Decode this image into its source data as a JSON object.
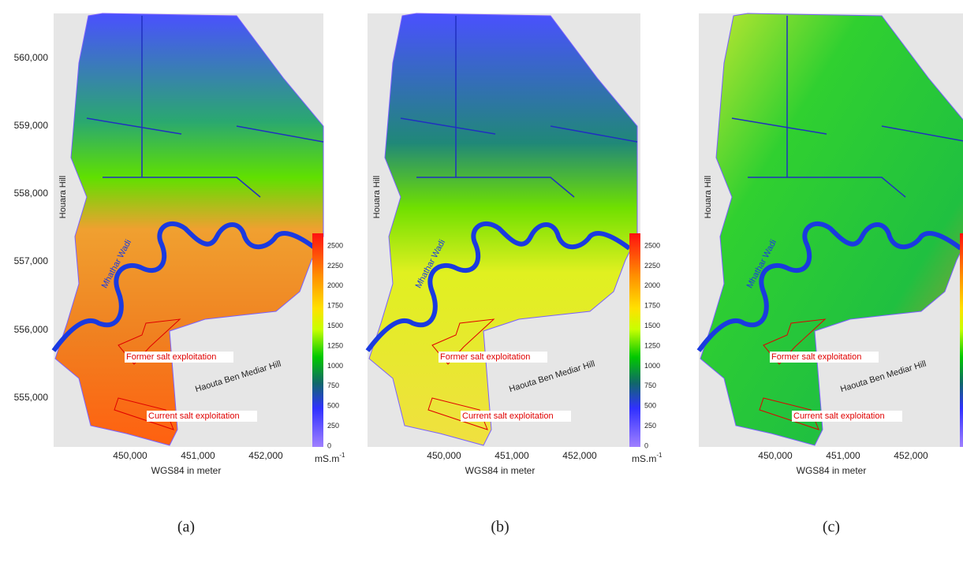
{
  "panels": [
    {
      "label": "(a)",
      "y_ticks": [
        "560,000",
        "559,000",
        "558,000",
        "557,000",
        "556,000",
        "555,000"
      ],
      "x_ticks": [
        "450,000",
        "451,000",
        "452,000"
      ],
      "x_axis_title": "WGS84 in meter",
      "colorbar_ticks": [
        "2500",
        "2250",
        "2000",
        "1750",
        "1500",
        "1250",
        "1000",
        "750",
        "500",
        "250",
        "0"
      ],
      "colorbar_unit": "mS.m",
      "colorbar_unit_exponent": "-1",
      "annotations": [
        "Houara Hill",
        "Mhathar Wadi",
        "Former salt exploitation",
        "Current salt exploitation",
        "Haouta Ben Mediar Hill"
      ]
    },
    {
      "label": "(b)",
      "x_ticks": [
        "450,000",
        "451,000",
        "452,000"
      ],
      "x_axis_title": "WGS84 in meter",
      "colorbar_ticks": [
        "2500",
        "2250",
        "2000",
        "1750",
        "1500",
        "1250",
        "1000",
        "750",
        "500",
        "250",
        "0"
      ],
      "colorbar_unit": "mS.m",
      "colorbar_unit_exponent": "-1",
      "annotations": [
        "Houara Hill",
        "Mhathar Wadi",
        "Former salt exploitation",
        "Current salt exploitation",
        "Haouta Ben Mediar Hill"
      ]
    },
    {
      "label": "(c)",
      "x_ticks": [
        "450,000",
        "451,000",
        "452,000"
      ],
      "x_axis_title": "WGS84 in meter",
      "annotations": [
        "Houara Hill",
        "Mhathar Wadi",
        "Former salt exploitation",
        "Current salt exploitation",
        "Haouta Ben Mediar Hill"
      ]
    }
  ]
}
